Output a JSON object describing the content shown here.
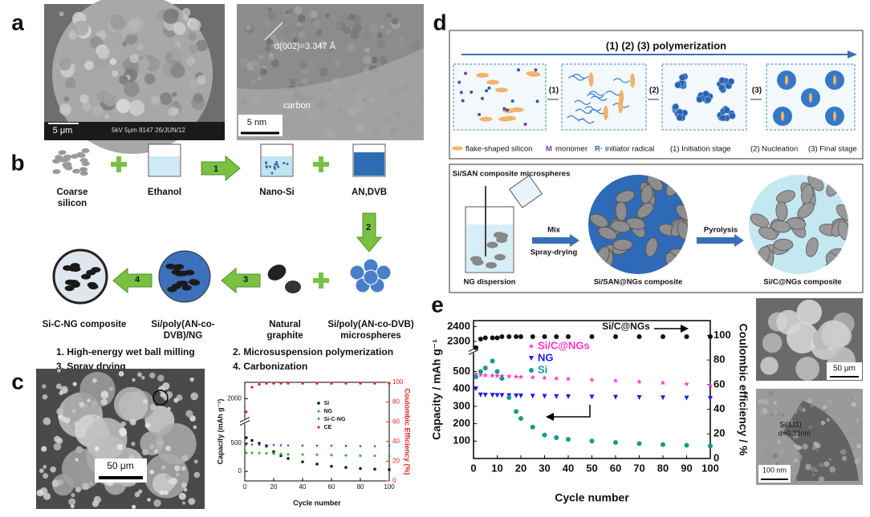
{
  "panels": {
    "a": {
      "label": "a",
      "sem_scale": "5 μm",
      "sem_info": "5kV  5μm 8147 26/JUN/12",
      "tem_scale": "5 nm",
      "tem_spacing": "d(002)=3.347 Å",
      "tem_layer": "carbon"
    },
    "b": {
      "label": "b",
      "materials": [
        [
          "Coarse",
          "silicon"
        ],
        [
          "Ethanol"
        ],
        [
          "Nano-Si"
        ],
        [
          "AN,DVB"
        ],
        [
          "Si/poly(AN-co-DVB)",
          "microspheres"
        ],
        [
          "Natural",
          "graphite"
        ],
        [
          "Si/poly(AN-co-",
          "DVB)/NG"
        ],
        [
          "Si-C-NG composite"
        ]
      ],
      "steps": [
        "1",
        "2",
        "3",
        "4"
      ],
      "notes": [
        "1. High-energy wet ball  milling",
        "2. Microsuspension polymerization",
        "3. Spray drying",
        "4. Carbonization"
      ]
    },
    "c": {
      "label": "c",
      "sem_scale": "50 μm",
      "chart": {
        "type": "scatter",
        "x_label": "Cycle number",
        "y_label": "Capacity (mAh g⁻¹)",
        "y2_label": "Coulombic Efficiency (%)",
        "xlim": [
          0,
          100
        ],
        "xticks": [
          0,
          20,
          40,
          60,
          80,
          100
        ],
        "ylim": [
          -170,
          2290
        ],
        "ybreak": [
          690,
          1800
        ],
        "yticks": [
          0,
          500,
          2000
        ],
        "y2lim": [
          0,
          100
        ],
        "y2ticks": [
          0,
          20,
          40,
          60,
          80,
          100
        ],
        "x": [
          1,
          5,
          10,
          15,
          20,
          25,
          30,
          40,
          50,
          60,
          70,
          80,
          90,
          100
        ],
        "series": [
          {
            "name": "Si",
            "color": "#111111",
            "marker": "square",
            "values": [
              600,
              550,
              500,
              450,
              350,
              280,
              230,
              170,
              130,
              90,
              70,
              50,
              40,
              30
            ]
          },
          {
            "name": "NG",
            "color": "#33bb33",
            "marker": "circle",
            "values": [
              330,
              330,
              325,
              320,
              315,
              310,
              305,
              300,
              295,
              290,
              285,
              280,
              278,
              275
            ]
          },
          {
            "name": "Si-C-NG",
            "color": "#2244dd",
            "marker": "triangle",
            "values": [
              470,
              470,
              465,
              462,
              460,
              458,
              455,
              452,
              450,
              448,
              445,
              442,
              440,
              438
            ]
          },
          {
            "name": "CE",
            "color": "#e02020",
            "marker": "circle",
            "axis": "y2",
            "values": [
              70,
              95,
              98,
              99,
              99,
              99,
              99,
              99,
              99,
              99,
              99,
              99,
              99,
              99
            ]
          }
        ]
      }
    },
    "d": {
      "label": "d",
      "title": "(1) (2) (3)   polymerization",
      "step_labels": [
        "(1)",
        "(2)",
        "(3)"
      ],
      "legend": [
        "flake-shaped silicon",
        "M",
        "monomer",
        "R·",
        "initiator radical",
        "(1) Initiation stage",
        "(2) Nucleation",
        "(3) Final stage"
      ],
      "bottom": {
        "microspheres": "Si/SAN composite microspheres",
        "mix": "Mix",
        "spray": "Spray-drying",
        "pyrolysis": "Pyrolysis",
        "dispersion": "NG dispersion",
        "composite1": "Si/SAN@NGs composite",
        "composite2": "Si/C@NGs composite"
      }
    },
    "e": {
      "label": "e",
      "sem_scale": "50 μm",
      "tem_scale": "100 nm",
      "tem_lattice": [
        "Si(111)",
        "d=0.31nm"
      ],
      "chart": {
        "type": "scatter",
        "x_label": "Cycle number",
        "y_label": "Capacity / mAh g⁻¹",
        "y2_label": "Coulombic efficiency / %",
        "xlim": [
          0,
          100
        ],
        "xticks": [
          0,
          10,
          20,
          30,
          40,
          50,
          60,
          70,
          80,
          90,
          100
        ],
        "ylim": [
          0,
          2440
        ],
        "ybreak": [
          610,
          2250
        ],
        "yticks": [
          100,
          200,
          300,
          400,
          500,
          2300,
          2400
        ],
        "y2lim": [
          0,
          112
        ],
        "y2ticks": [
          0,
          20,
          40,
          60,
          80,
          100
        ],
        "x": [
          1,
          3,
          5,
          8,
          10,
          12,
          15,
          18,
          20,
          25,
          30,
          35,
          40,
          50,
          60,
          70,
          80,
          90,
          100
        ],
        "series": [
          {
            "name": "Si/C@NGs",
            "color": "#ff33cc",
            "marker": "star",
            "values": [
              485,
              480,
              478,
              476,
              475,
              474,
              472,
              470,
              469,
              466,
              463,
              460,
              457,
              452,
              447,
              441,
              435,
              428,
              420
            ]
          },
          {
            "name": "NG",
            "color": "#1a1aff",
            "marker": "triangle",
            "values": [
              400,
              365,
              364,
              363,
              362,
              362,
              361,
              360,
              359,
              358,
              357,
              356,
              355,
              353,
              352,
              350,
              349,
              347,
              345
            ]
          },
          {
            "name": "Si",
            "color": "#139a8e",
            "marker": "circle",
            "values": [
              470,
              500,
              520,
              560,
              500,
              460,
              350,
              270,
              230,
              180,
              135,
              120,
              110,
              100,
              92,
              86,
              80,
              76,
              72
            ]
          },
          {
            "name": "Si/C@NGs",
            "color": "#111111",
            "marker": "circle",
            "axis": "y2",
            "values": [
              90,
              97,
              98,
              98,
              98,
              99,
              99,
              99,
              99,
              99,
              99,
              99,
              99,
              99,
              99,
              99,
              99,
              99,
              99
            ]
          }
        ]
      }
    }
  }
}
